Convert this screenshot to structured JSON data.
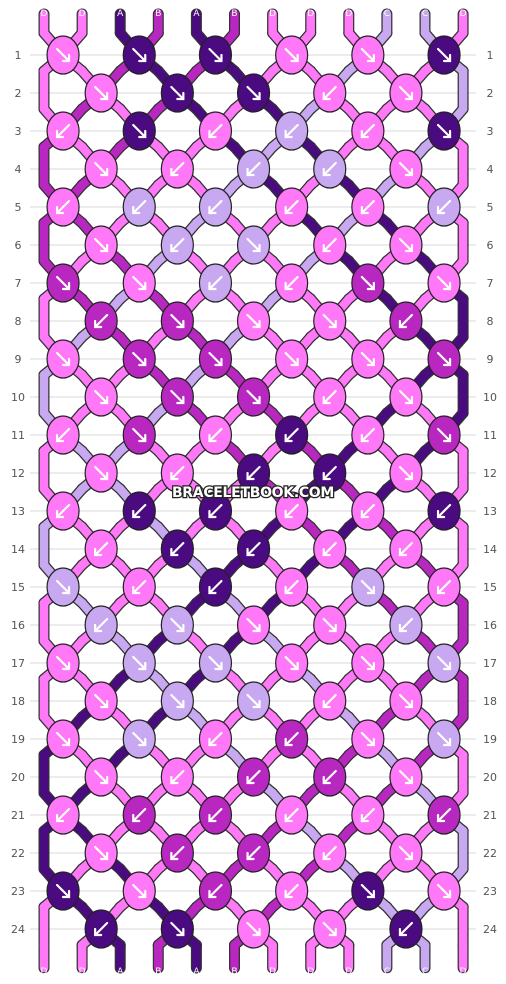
{
  "watermark": "BRACELETBOOK.COM",
  "colors": {
    "A": "#4a0a80",
    "B": "#b828c0",
    "C": "#c8a8f0",
    "D": "#ff78f8"
  },
  "strands_top": [
    "D",
    "D",
    "A",
    "B",
    "A",
    "B",
    "D",
    "D",
    "D",
    "C",
    "C",
    "D"
  ],
  "strands_bottom": [
    "D",
    "D",
    "A",
    "B",
    "A",
    "B",
    "D",
    "D",
    "D",
    "C",
    "C",
    "D"
  ],
  "row_labels": [
    "1",
    "2",
    "3",
    "4",
    "5",
    "6",
    "7",
    "8",
    "9",
    "10",
    "11",
    "12",
    "13",
    "14",
    "15",
    "16",
    "17",
    "18",
    "19",
    "20",
    "21",
    "22",
    "23",
    "24"
  ],
  "knot_rows": [
    {
      "row": 1,
      "knots": [
        {
          "color": "D",
          "dir": "R"
        },
        {
          "color": "A",
          "dir": "R"
        },
        {
          "color": "A",
          "dir": "R"
        },
        {
          "color": "D",
          "dir": "R"
        }
      ]
    },
    {
      "row": 2,
      "knots": [
        {
          "color": "D",
          "dir": "R"
        },
        {
          "color": "A",
          "dir": "R"
        },
        {
          "color": "A",
          "dir": "R"
        },
        {
          "color": "D",
          "dir": "L"
        }
      ]
    },
    {
      "row": 3,
      "knots": [
        {
          "color": "D",
          "dir": "L"
        },
        {
          "color": "A",
          "dir": "R"
        },
        {
          "color": "D",
          "dir": "L"
        },
        {
          "color": "C",
          "dir": "L"
        }
      ]
    },
    {
      "row": 4,
      "knots": [
        {
          "color": "D",
          "dir": "R"
        },
        {
          "color": "D",
          "dir": "L"
        },
        {
          "color": "C",
          "dir": "L"
        },
        {
          "color": "C",
          "dir": "L"
        }
      ]
    },
    {
      "row": 5,
      "knots": [
        {
          "color": "D",
          "dir": "L"
        },
        {
          "color": "C",
          "dir": "L"
        },
        {
          "color": "C",
          "dir": "L"
        },
        {
          "color": "D",
          "dir": "L"
        }
      ]
    },
    {
      "row": 6,
      "knots": [
        {
          "color": "D",
          "dir": "R"
        },
        {
          "color": "C",
          "dir": "L"
        },
        {
          "color": "C",
          "dir": "R"
        },
        {
          "color": "D",
          "dir": "L"
        }
      ]
    },
    {
      "row": 7,
      "knots": [
        {
          "color": "B",
          "dir": "R"
        },
        {
          "color": "D",
          "dir": "R"
        },
        {
          "color": "C",
          "dir": "L"
        },
        {
          "color": "D",
          "dir": "L"
        }
      ]
    },
    {
      "row": 8,
      "knots": [
        {
          "color": "B",
          "dir": "L"
        },
        {
          "color": "B",
          "dir": "R"
        },
        {
          "color": "D",
          "dir": "R"
        },
        {
          "color": "D",
          "dir": "R"
        }
      ]
    },
    {
      "row": 9,
      "knots": [
        {
          "color": "D",
          "dir": "R"
        },
        {
          "color": "B",
          "dir": "R"
        },
        {
          "color": "B",
          "dir": "R"
        },
        {
          "color": "D",
          "dir": "R"
        }
      ]
    },
    {
      "row": 10,
      "knots": [
        {
          "color": "D",
          "dir": "R"
        },
        {
          "color": "B",
          "dir": "R"
        },
        {
          "color": "B",
          "dir": "R"
        },
        {
          "color": "D",
          "dir": "L"
        }
      ]
    },
    {
      "row": 11,
      "knots": [
        {
          "color": "D",
          "dir": "L"
        },
        {
          "color": "B",
          "dir": "R"
        },
        {
          "color": "D",
          "dir": "L"
        },
        {
          "color": "A",
          "dir": "L"
        }
      ]
    },
    {
      "row": 12,
      "knots": [
        {
          "color": "D",
          "dir": "R"
        },
        {
          "color": "D",
          "dir": "L"
        },
        {
          "color": "A",
          "dir": "L"
        },
        {
          "color": "A",
          "dir": "L"
        }
      ]
    },
    {
      "row": 13,
      "knots": [
        {
          "color": "D",
          "dir": "L"
        },
        {
          "color": "A",
          "dir": "L"
        },
        {
          "color": "A",
          "dir": "L"
        },
        {
          "color": "D",
          "dir": "L"
        }
      ]
    },
    {
      "row": 14,
      "knots": [
        {
          "color": "D",
          "dir": "L"
        },
        {
          "color": "A",
          "dir": "L"
        },
        {
          "color": "A",
          "dir": "L"
        },
        {
          "color": "D",
          "dir": "L"
        }
      ]
    },
    {
      "row": 15,
      "knots": [
        {
          "color": "C",
          "dir": "R"
        },
        {
          "color": "D",
          "dir": "L"
        },
        {
          "color": "A",
          "dir": "L"
        },
        {
          "color": "D",
          "dir": "L"
        }
      ]
    },
    {
      "row": 16,
      "knots": [
        {
          "color": "C",
          "dir": "L"
        },
        {
          "color": "C",
          "dir": "R"
        },
        {
          "color": "D",
          "dir": "R"
        },
        {
          "color": "D",
          "dir": "R"
        }
      ]
    },
    {
      "row": 17,
      "knots": [
        {
          "color": "D",
          "dir": "R"
        },
        {
          "color": "C",
          "dir": "R"
        },
        {
          "color": "C",
          "dir": "R"
        },
        {
          "color": "D",
          "dir": "R"
        }
      ]
    },
    {
      "row": 18,
      "knots": [
        {
          "color": "D",
          "dir": "R"
        },
        {
          "color": "C",
          "dir": "R"
        },
        {
          "color": "C",
          "dir": "R"
        },
        {
          "color": "D",
          "dir": "L"
        }
      ]
    },
    {
      "row": 19,
      "knots": [
        {
          "color": "D",
          "dir": "R"
        },
        {
          "color": "C",
          "dir": "R"
        },
        {
          "color": "D",
          "dir": "L"
        },
        {
          "color": "B",
          "dir": "L"
        }
      ]
    },
    {
      "row": 20,
      "knots": [
        {
          "color": "D",
          "dir": "R"
        },
        {
          "color": "D",
          "dir": "L"
        },
        {
          "color": "B",
          "dir": "L"
        },
        {
          "color": "B",
          "dir": "L"
        }
      ]
    },
    {
      "row": 21,
      "knots": [
        {
          "color": "D",
          "dir": "L"
        },
        {
          "color": "B",
          "dir": "L"
        },
        {
          "color": "B",
          "dir": "L"
        },
        {
          "color": "D",
          "dir": "L"
        }
      ]
    },
    {
      "row": 22,
      "knots": [
        {
          "color": "D",
          "dir": "R"
        },
        {
          "color": "B",
          "dir": "L"
        },
        {
          "color": "B",
          "dir": "L"
        },
        {
          "color": "D",
          "dir": "L"
        }
      ]
    },
    {
      "row": 23,
      "knots": [
        {
          "color": "A",
          "dir": "R"
        },
        {
          "color": "D",
          "dir": "R"
        },
        {
          "color": "B",
          "dir": "L"
        },
        {
          "color": "D",
          "dir": "L"
        }
      ]
    },
    {
      "row": 24,
      "knots": [
        {
          "color": "A",
          "dir": "L"
        },
        {
          "color": "A",
          "dir": "R"
        },
        {
          "color": "D",
          "dir": "R"
        },
        {
          "color": "D",
          "dir": "R"
        }
      ]
    }
  ]
}
